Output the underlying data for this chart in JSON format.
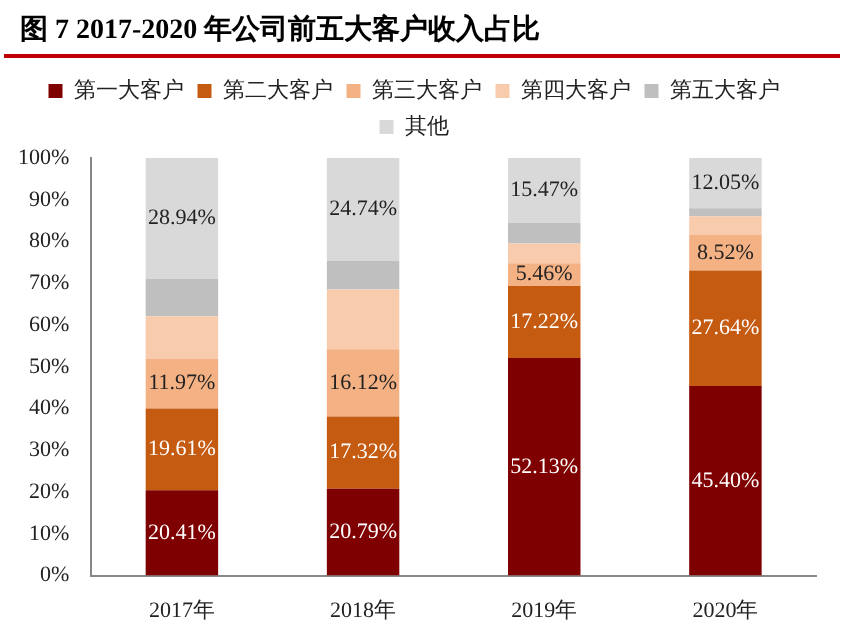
{
  "chart_data": {
    "type": "bar",
    "stacked": true,
    "title": "图 7 2017-2020 年公司前五大客户收入占比",
    "categories": [
      "2017年",
      "2018年",
      "2019年",
      "2020年"
    ],
    "series": [
      {
        "name": "第一大客户",
        "color": "#7f0000",
        "values": [
          20.41,
          20.79,
          52.13,
          45.4
        ],
        "value_labels": [
          "20.41%",
          "20.79%",
          "52.13%",
          "45.40%"
        ]
      },
      {
        "name": "第二大客户",
        "color": "#c55a11",
        "values": [
          19.61,
          17.32,
          17.22,
          27.64
        ],
        "value_labels": [
          "19.61%",
          "17.32%",
          "17.22%",
          "27.64%"
        ]
      },
      {
        "name": "第三大客户",
        "color": "#f4b183",
        "values": [
          11.97,
          16.12,
          5.46,
          8.52
        ],
        "value_labels": [
          "11.97%",
          "16.12%",
          "5.46%",
          "8.52%"
        ]
      },
      {
        "name": "第四大客户",
        "color": "#f8cbad",
        "values": [
          10.1,
          14.3,
          4.7,
          4.5
        ]
      },
      {
        "name": "第五大客户",
        "color": "#bfbfbf",
        "values": [
          9.0,
          6.8,
          5.0,
          1.9
        ]
      },
      {
        "name": "其他",
        "color": "#d9d9d9",
        "values": [
          28.94,
          24.74,
          15.47,
          12.05
        ],
        "value_labels": [
          "28.94%",
          "24.74%",
          "15.47%",
          "12.05%"
        ]
      }
    ],
    "ylim": [
      0,
      100
    ],
    "yticks": [
      {
        "value": 0,
        "label": "0%"
      },
      {
        "value": 10,
        "label": "10%"
      },
      {
        "value": 20,
        "label": "20%"
      },
      {
        "value": 30,
        "label": "30%"
      },
      {
        "value": 40,
        "label": "40%"
      },
      {
        "value": 50,
        "label": "50%"
      },
      {
        "value": 60,
        "label": "60%"
      },
      {
        "value": 70,
        "label": "70%"
      },
      {
        "value": 80,
        "label": "80%"
      },
      {
        "value": 90,
        "label": "90%"
      },
      {
        "value": 100,
        "label": "100%"
      }
    ],
    "grid": false,
    "legend": "top"
  }
}
